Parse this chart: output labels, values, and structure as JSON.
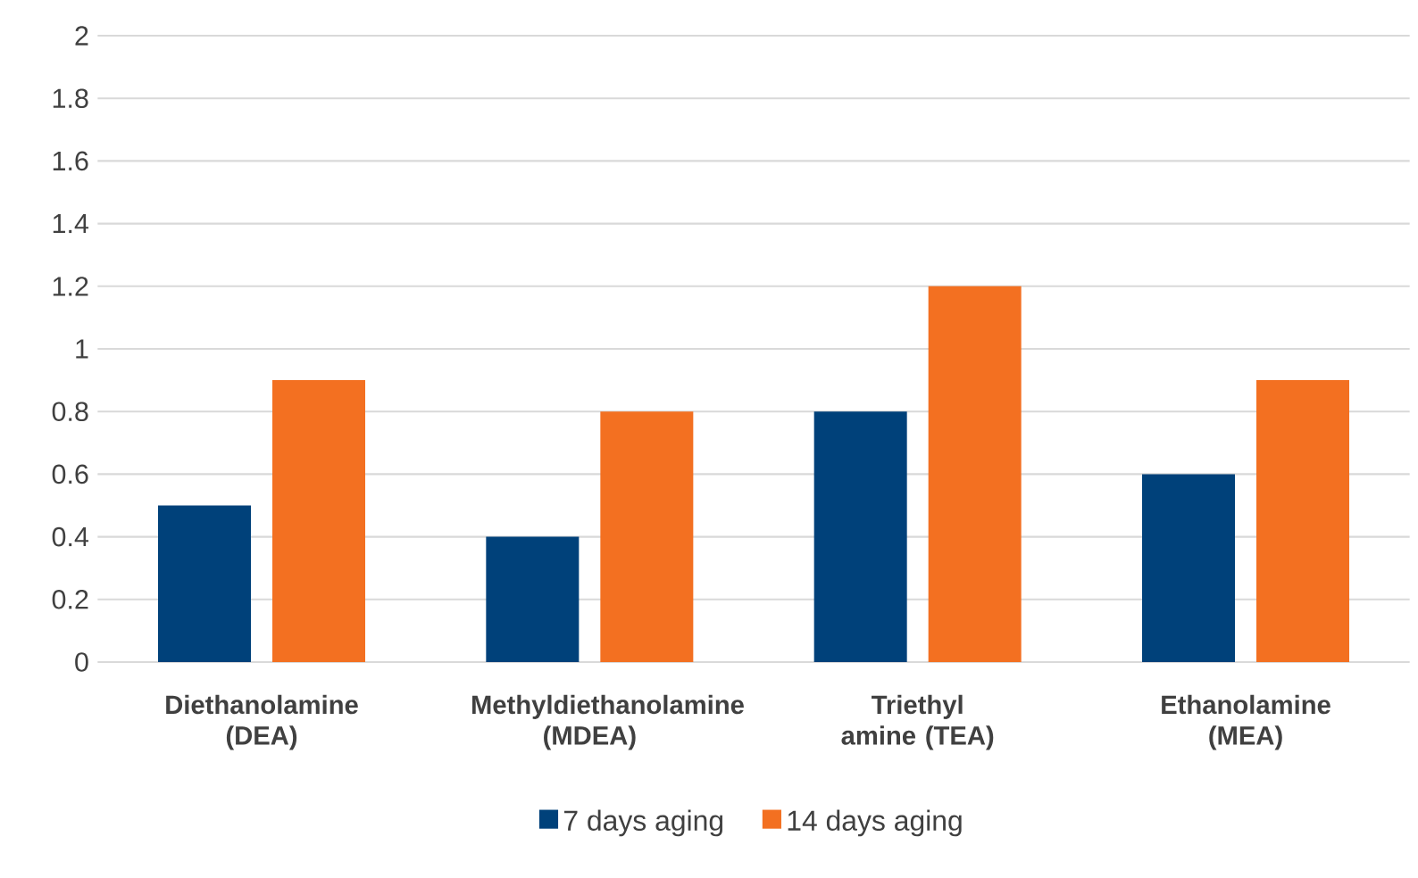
{
  "chart_data": {
    "type": "bar",
    "categories": [
      "Diethanolamine (DEA)",
      "Methyldiethanolamine (MDEA)",
      "Triethyl amine (TEA)",
      "Ethanolamine (MEA)"
    ],
    "series": [
      {
        "name": "7 days aging",
        "color": "#00417a",
        "values": [
          0.5,
          0.4,
          0.8,
          0.6
        ]
      },
      {
        "name": "14 days aging",
        "color": "#f37021",
        "values": [
          0.9,
          0.8,
          1.2,
          0.9
        ]
      }
    ],
    "ylim": [
      0,
      2
    ],
    "yticks": [
      0,
      0.2,
      0.4,
      0.6,
      0.8,
      1,
      1.2,
      1.4,
      1.6,
      1.8,
      2
    ],
    "grid": "y",
    "legend": "bottom"
  }
}
